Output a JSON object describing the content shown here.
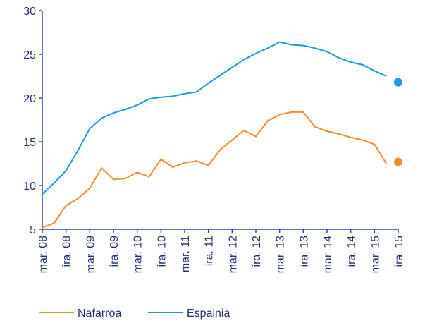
{
  "chart_data": {
    "type": "line",
    "categories": [
      "mar. 08",
      null,
      "ira. 08",
      null,
      "mar. 09",
      null,
      "ira. 09",
      null,
      "mar. 10",
      null,
      "ira. 10",
      null,
      "mar. 11",
      null,
      "ira. 11",
      null,
      "mar. 12",
      null,
      "ira. 12",
      null,
      "mar. 13",
      null,
      "ira. 13",
      null,
      "mar. 14",
      null,
      "ira. 14",
      null,
      "mar. 15",
      null,
      "ira. 15"
    ],
    "series": [
      {
        "name": "Nafarroa",
        "color": "#f28c28",
        "values": [
          5.2,
          5.7,
          7.7,
          8.5,
          9.7,
          12.0,
          10.7,
          10.8,
          11.5,
          11.0,
          13.0,
          12.1,
          12.6,
          12.8,
          12.3,
          14.1,
          15.2,
          16.3,
          15.6,
          17.4,
          18.1,
          18.4,
          18.4,
          16.7,
          16.2,
          15.9,
          15.5,
          15.2,
          14.7,
          12.5,
          12.7
        ]
      },
      {
        "name": "Espainia",
        "color": "#1a9ad6",
        "values": [
          9.0,
          10.3,
          11.7,
          14.0,
          16.5,
          17.7,
          18.3,
          18.7,
          19.2,
          19.9,
          20.1,
          20.2,
          20.5,
          20.7,
          21.7,
          22.6,
          23.5,
          24.4,
          25.1,
          25.7,
          26.4,
          26.1,
          26.0,
          25.7,
          25.3,
          24.6,
          24.1,
          23.8,
          23.1,
          22.5,
          21.8
        ]
      }
    ],
    "ylim": [
      5,
      30
    ],
    "yticks": [
      5,
      10,
      15,
      20,
      25,
      30
    ],
    "last_point_marker": true,
    "legend": "bottom"
  }
}
